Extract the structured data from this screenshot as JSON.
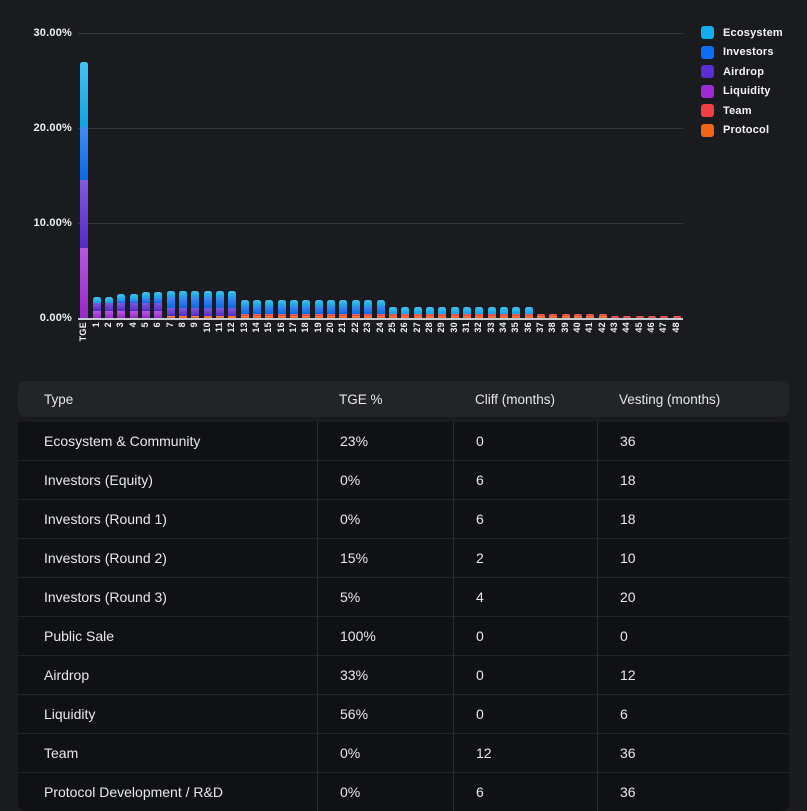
{
  "chart_data": {
    "type": "bar",
    "stacked": true,
    "grid": true,
    "legend_position": "top-right",
    "ylim": [
      0,
      30
    ],
    "y_tick_values": [
      0,
      10,
      20,
      30
    ],
    "y_tick_labels": [
      "0.00%",
      "10.00%",
      "20.00%",
      "30.00%"
    ],
    "categories": [
      "TGE",
      "1",
      "2",
      "3",
      "4",
      "5",
      "6",
      "7",
      "8",
      "9",
      "10",
      "11",
      "12",
      "13",
      "14",
      "15",
      "16",
      "17",
      "18",
      "19",
      "20",
      "21",
      "22",
      "23",
      "24",
      "25",
      "26",
      "27",
      "28",
      "29",
      "30",
      "31",
      "32",
      "33",
      "34",
      "35",
      "36",
      "37",
      "38",
      "39",
      "40",
      "41",
      "42",
      "43",
      "44",
      "45",
      "46",
      "47",
      "48"
    ],
    "series": [
      {
        "name": "Ecosystem",
        "color": "#12aeef",
        "values": [
          6.9,
          0.64,
          0.64,
          0.64,
          0.64,
          0.64,
          0.64,
          0.64,
          0.64,
          0.64,
          0.64,
          0.64,
          0.64,
          0.64,
          0.64,
          0.64,
          0.64,
          0.64,
          0.64,
          0.64,
          0.64,
          0.64,
          0.64,
          0.64,
          0.64,
          0.64,
          0.64,
          0.64,
          0.64,
          0.64,
          0.64,
          0.64,
          0.64,
          0.64,
          0.64,
          0.64,
          0.64,
          0,
          0,
          0,
          0,
          0,
          0,
          0,
          0,
          0,
          0,
          0,
          0
        ]
      },
      {
        "name": "Investors",
        "color": "#0b6ef5",
        "values": [
          5.6,
          0,
          0,
          0.32,
          0.32,
          0.52,
          0.52,
          1.11,
          1.11,
          1.11,
          1.11,
          1.11,
          1.11,
          0.79,
          0.79,
          0.79,
          0.79,
          0.79,
          0.79,
          0.79,
          0.79,
          0.79,
          0.79,
          0.79,
          0.79,
          0,
          0,
          0,
          0,
          0,
          0,
          0,
          0,
          0,
          0,
          0,
          0,
          0,
          0,
          0,
          0,
          0,
          0,
          0,
          0,
          0,
          0,
          0,
          0
        ]
      },
      {
        "name": "Airdrop",
        "color": "#5a2dd5",
        "values": [
          7.1,
          0.85,
          0.85,
          0.85,
          0.85,
          0.85,
          0.85,
          0.85,
          0.85,
          0.85,
          0.85,
          0.85,
          0.85,
          0,
          0,
          0,
          0,
          0,
          0,
          0,
          0,
          0,
          0,
          0,
          0,
          0,
          0,
          0,
          0,
          0,
          0,
          0,
          0,
          0,
          0,
          0,
          0,
          0,
          0,
          0,
          0,
          0,
          0,
          0,
          0,
          0,
          0,
          0,
          0
        ]
      },
      {
        "name": "Liquidity",
        "color": "#9f2bd6",
        "values": [
          7.4,
          0.7,
          0.7,
          0.7,
          0.7,
          0.7,
          0.7,
          0,
          0,
          0,
          0,
          0,
          0,
          0,
          0,
          0,
          0,
          0,
          0,
          0,
          0,
          0,
          0,
          0,
          0,
          0,
          0,
          0,
          0,
          0,
          0,
          0,
          0,
          0,
          0,
          0,
          0,
          0,
          0,
          0,
          0,
          0,
          0,
          0,
          0,
          0,
          0,
          0,
          0
        ]
      },
      {
        "name": "Team",
        "color": "#ef3e44",
        "values": [
          0,
          0,
          0,
          0,
          0,
          0,
          0,
          0,
          0,
          0,
          0,
          0,
          0,
          0.26,
          0.26,
          0.26,
          0.26,
          0.26,
          0.26,
          0.26,
          0.26,
          0.26,
          0.26,
          0.26,
          0.26,
          0.26,
          0.26,
          0.26,
          0.26,
          0.26,
          0.26,
          0.26,
          0.26,
          0.26,
          0.26,
          0.26,
          0.26,
          0.26,
          0.26,
          0.26,
          0.26,
          0.26,
          0.26,
          0.26,
          0.26,
          0.26,
          0.26,
          0.26,
          0.26
        ]
      },
      {
        "name": "Protocol",
        "color": "#f26418",
        "values": [
          0,
          0,
          0,
          0,
          0,
          0,
          0,
          0.21,
          0.21,
          0.21,
          0.21,
          0.21,
          0.21,
          0.21,
          0.21,
          0.21,
          0.21,
          0.21,
          0.21,
          0.21,
          0.21,
          0.21,
          0.21,
          0.21,
          0.21,
          0.21,
          0.21,
          0.21,
          0.21,
          0.21,
          0.21,
          0.21,
          0.21,
          0.21,
          0.21,
          0.21,
          0.21,
          0.21,
          0.21,
          0.21,
          0.21,
          0.21,
          0.21,
          0,
          0,
          0,
          0,
          0,
          0
        ]
      }
    ]
  },
  "table": {
    "headers": [
      "Type",
      "TGE %",
      "Cliff (months)",
      "Vesting (months)"
    ],
    "rows": [
      [
        "Ecosystem & Community",
        "23%",
        "0",
        "36"
      ],
      [
        "Investors (Equity)",
        "0%",
        "6",
        "18"
      ],
      [
        "Investors (Round 1)",
        "0%",
        "6",
        "18"
      ],
      [
        "Investors (Round 2)",
        "15%",
        "2",
        "10"
      ],
      [
        "Investors (Round 3)",
        "5%",
        "4",
        "20"
      ],
      [
        "Public Sale",
        "100%",
        "0",
        "0"
      ],
      [
        "Airdrop",
        "33%",
        "0",
        "12"
      ],
      [
        "Liquidity",
        "56%",
        "0",
        "6"
      ],
      [
        "Team",
        "0%",
        "12",
        "36"
      ],
      [
        "Protocol Development / R&D",
        "0%",
        "6",
        "36"
      ]
    ]
  },
  "colors": {
    "page_bg": "#1a1b1e",
    "gridline": "#35363b",
    "zero_line": "#c6cbd1",
    "table_header_bg": "#232428",
    "table_row_bg": "#101114"
  }
}
